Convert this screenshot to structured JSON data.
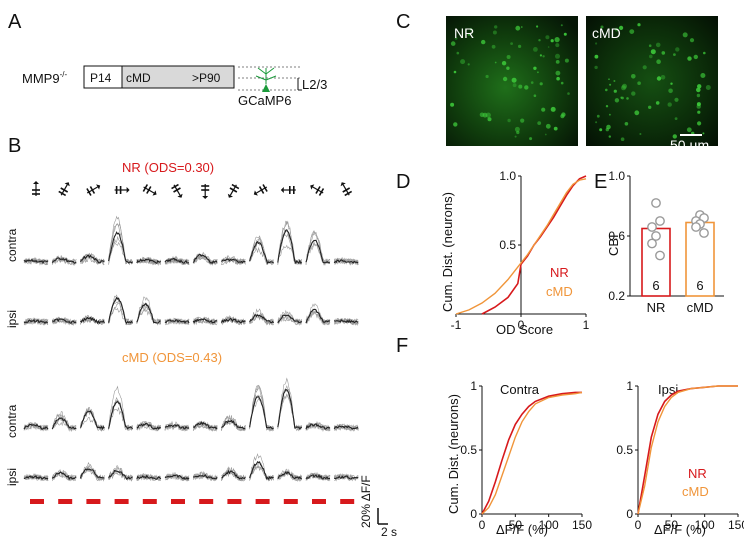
{
  "panels": {
    "A": {
      "letter": "A",
      "genotype": "MMP9",
      "genotype_sup": "-/-",
      "timeline": [
        "P14",
        "cMD",
        ">P90"
      ],
      "layer": "L2/3",
      "indicator": "GCaMP6"
    },
    "B": {
      "letter": "B",
      "nr_title": "NR (ODS=0.30)",
      "cmd_title": "cMD (ODS=0.43)",
      "row_labels": [
        "contra",
        "ipsi",
        "contra",
        "ipsi"
      ],
      "scale_y": "20% ΔF/F",
      "scale_x": "2 s",
      "n_orientations": 12
    },
    "C": {
      "letter": "C",
      "image_labels": [
        "NR",
        "cMD"
      ],
      "scalebar": "50 µm"
    },
    "D": {
      "letter": "D",
      "ylabel": "Cum. Dist. (neurons)",
      "xlabel": "OD Score",
      "legend": [
        "NR",
        "cMD"
      ]
    },
    "E": {
      "letter": "E",
      "ylabel": "CBI"
    },
    "F": {
      "letter": "F",
      "ylabel": "Cum. Dist. (neurons)",
      "xlabel": "ΔF/F (%)",
      "sub_titles": [
        "Contra",
        "Ipsi"
      ],
      "legend": [
        "NR",
        "cMD"
      ]
    }
  },
  "colors": {
    "nr": "#d7191c",
    "cmd": "#f0953a",
    "trace": "#222222",
    "trace_light": "#9a9a9a",
    "micro_bg": "#0a1a08",
    "micro_fg": "#3dc93a"
  },
  "chart_data": [
    {
      "panel": "D",
      "type": "line",
      "xlabel": "OD Score",
      "ylabel": "Cum. Dist. (neurons)",
      "xlim": [
        -1,
        1
      ],
      "ylim": [
        0,
        1
      ],
      "xticks": [
        "-1",
        "0",
        "1"
      ],
      "yticks": [
        "0.5",
        "1.0"
      ],
      "series": [
        {
          "name": "NR",
          "x": [
            -0.6,
            -0.4,
            -0.2,
            -0.05,
            0,
            0.1,
            0.2,
            0.3,
            0.4,
            0.5,
            0.6,
            0.7,
            0.8,
            0.9,
            1.0
          ],
          "y": [
            0,
            0.05,
            0.12,
            0.22,
            0.36,
            0.42,
            0.5,
            0.56,
            0.63,
            0.7,
            0.78,
            0.86,
            0.93,
            0.98,
            1.0
          ]
        },
        {
          "name": "cMD",
          "x": [
            -1.0,
            -0.8,
            -0.6,
            -0.4,
            -0.2,
            0,
            0.1,
            0.2,
            0.3,
            0.4,
            0.5,
            0.6,
            0.7,
            0.8,
            0.9,
            1.0
          ],
          "y": [
            0,
            0.03,
            0.08,
            0.15,
            0.25,
            0.37,
            0.43,
            0.5,
            0.57,
            0.64,
            0.72,
            0.8,
            0.88,
            0.94,
            0.97,
            0.98
          ]
        }
      ]
    },
    {
      "panel": "E",
      "type": "bar",
      "ylabel": "CBI",
      "categories": [
        "NR",
        "cMD"
      ],
      "values": [
        0.65,
        0.69
      ],
      "counts": [
        "6",
        "6"
      ],
      "ylim": [
        0.2,
        1.0
      ],
      "yticks": [
        "0.2",
        "0.6",
        "1.0"
      ],
      "points": [
        [
          0.82,
          0.7,
          0.66,
          0.6,
          0.55,
          0.47
        ],
        [
          0.74,
          0.72,
          0.7,
          0.68,
          0.66,
          0.62
        ]
      ]
    },
    {
      "panel": "F",
      "subplot": "Contra",
      "type": "line",
      "xlabel": "ΔF/F (%)",
      "xlim": [
        0,
        150
      ],
      "ylim": [
        0,
        1
      ],
      "xticks": [
        "0",
        "50",
        "100",
        "150"
      ],
      "yticks": [
        "0",
        "0.5",
        "1"
      ],
      "series": [
        {
          "name": "NR",
          "x": [
            0,
            10,
            20,
            30,
            40,
            50,
            60,
            70,
            80,
            100,
            120,
            140,
            150
          ],
          "y": [
            0,
            0.1,
            0.25,
            0.42,
            0.58,
            0.7,
            0.78,
            0.84,
            0.88,
            0.92,
            0.94,
            0.95,
            0.95
          ]
        },
        {
          "name": "cMD",
          "x": [
            0,
            10,
            20,
            30,
            40,
            50,
            60,
            70,
            80,
            100,
            120,
            140,
            150
          ],
          "y": [
            0,
            0.05,
            0.15,
            0.3,
            0.45,
            0.6,
            0.72,
            0.8,
            0.86,
            0.91,
            0.93,
            0.94,
            0.95
          ]
        }
      ]
    },
    {
      "panel": "F",
      "subplot": "Ipsi",
      "type": "line",
      "xlabel": "ΔF/F (%)",
      "xlim": [
        0,
        150
      ],
      "ylim": [
        0,
        1
      ],
      "xticks": [
        "0",
        "50",
        "100",
        "150"
      ],
      "yticks": [
        "0",
        "0.5",
        "1"
      ],
      "series": [
        {
          "name": "NR",
          "x": [
            0,
            10,
            20,
            30,
            40,
            50,
            60,
            80,
            100,
            120,
            150
          ],
          "y": [
            0,
            0.3,
            0.6,
            0.78,
            0.88,
            0.93,
            0.96,
            0.98,
            0.99,
            1.0,
            1.0
          ]
        },
        {
          "name": "cMD",
          "x": [
            0,
            10,
            20,
            30,
            40,
            50,
            60,
            80,
            100,
            120,
            150
          ],
          "y": [
            0,
            0.22,
            0.52,
            0.72,
            0.84,
            0.91,
            0.95,
            0.98,
            0.99,
            1.0,
            1.0
          ]
        }
      ]
    }
  ]
}
